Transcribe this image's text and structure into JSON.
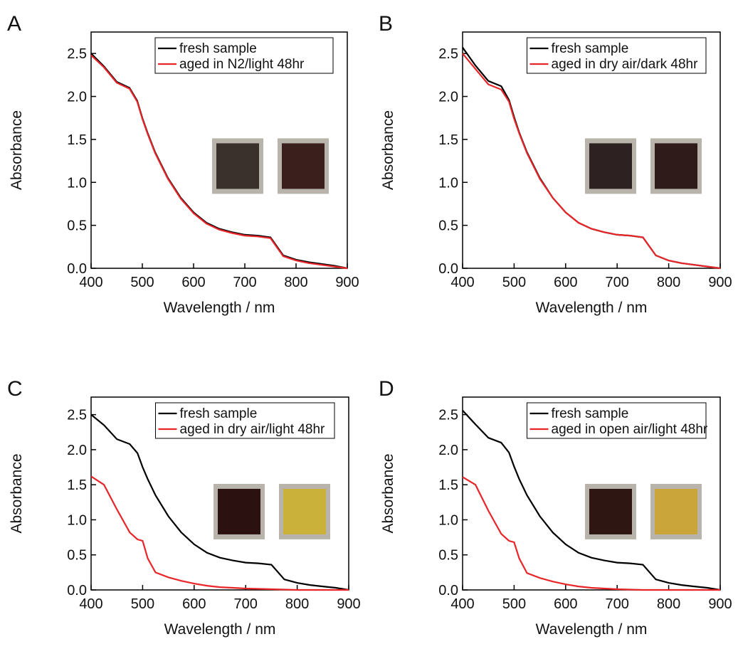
{
  "chart_data": [
    {
      "type": "line",
      "panel": "A",
      "xlabel": "Wavelength / nm",
      "ylabel": "Absorbance",
      "legend": "upper right",
      "x": [
        400,
        425,
        450,
        475,
        490,
        500,
        510,
        525,
        550,
        575,
        600,
        625,
        650,
        675,
        700,
        725,
        750,
        775,
        800,
        825,
        850,
        875,
        900
      ],
      "xlim": [
        400,
        900
      ],
      "xticks": [
        400,
        500,
        600,
        700,
        800,
        900
      ],
      "ylim": [
        0,
        2.75
      ],
      "yticks": [
        {
          "value": 0,
          "label": "0.0"
        },
        {
          "value": 0.5,
          "label": "0.5"
        },
        {
          "value": 1,
          "label": "1.0"
        },
        {
          "value": 1.5,
          "label": "1.5"
        },
        {
          "value": 2,
          "label": "2.0"
        },
        {
          "value": 2.5,
          "label": "2.5"
        }
      ],
      "series": [
        {
          "name": "fresh sample",
          "color": "#000000",
          "values": [
            2.5,
            2.35,
            2.17,
            2.1,
            1.95,
            1.75,
            1.58,
            1.35,
            1.05,
            0.82,
            0.65,
            0.53,
            0.46,
            0.42,
            0.39,
            0.38,
            0.36,
            0.15,
            0.1,
            0.07,
            0.05,
            0.03,
            0.0
          ]
        },
        {
          "name": "aged in N2/light 48hr",
          "color": "#e8262a",
          "values": [
            2.48,
            2.34,
            2.16,
            2.09,
            1.94,
            1.74,
            1.57,
            1.34,
            1.04,
            0.81,
            0.64,
            0.52,
            0.45,
            0.41,
            0.38,
            0.37,
            0.35,
            0.14,
            0.09,
            0.06,
            0.04,
            0.02,
            0.0
          ]
        }
      ]
    },
    {
      "type": "line",
      "panel": "B",
      "xlabel": "Wavelength / nm",
      "ylabel": "Absorbance",
      "legend": "upper right",
      "x": [
        400,
        425,
        450,
        475,
        490,
        500,
        510,
        525,
        550,
        575,
        600,
        625,
        650,
        675,
        700,
        725,
        750,
        775,
        800,
        825,
        850,
        875,
        900
      ],
      "xlim": [
        400,
        900
      ],
      "xticks": [
        400,
        500,
        600,
        700,
        800,
        900
      ],
      "ylim": [
        0,
        2.75
      ],
      "yticks": [
        {
          "value": 0,
          "label": "0.0"
        },
        {
          "value": 0.5,
          "label": "0.5"
        },
        {
          "value": 1,
          "label": "1.0"
        },
        {
          "value": 1.5,
          "label": "1.5"
        },
        {
          "value": 2,
          "label": "2.0"
        },
        {
          "value": 2.5,
          "label": "2.5"
        }
      ],
      "series": [
        {
          "name": "fresh sample",
          "color": "#000000",
          "values": [
            2.57,
            2.36,
            2.18,
            2.12,
            1.96,
            1.76,
            1.58,
            1.35,
            1.05,
            0.82,
            0.65,
            0.53,
            0.46,
            0.42,
            0.39,
            0.38,
            0.36,
            0.15,
            0.09,
            0.06,
            0.04,
            0.02,
            0.0
          ]
        },
        {
          "name": "aged in dry air/dark 48hr",
          "color": "#e8262a",
          "values": [
            2.5,
            2.32,
            2.14,
            2.08,
            1.94,
            1.74,
            1.57,
            1.34,
            1.04,
            0.82,
            0.65,
            0.53,
            0.46,
            0.42,
            0.39,
            0.38,
            0.36,
            0.15,
            0.09,
            0.06,
            0.04,
            0.02,
            0.0
          ]
        }
      ]
    },
    {
      "type": "line",
      "panel": "C",
      "xlabel": "Wavelength / nm",
      "ylabel": "Absorbance",
      "legend": "upper right",
      "x": [
        400,
        425,
        450,
        475,
        490,
        500,
        510,
        525,
        550,
        575,
        600,
        625,
        650,
        675,
        700,
        725,
        750,
        775,
        800,
        825,
        850,
        875,
        900
      ],
      "xlim": [
        400,
        900
      ],
      "xticks": [
        400,
        500,
        600,
        700,
        800,
        900
      ],
      "ylim": [
        0,
        2.75
      ],
      "yticks": [
        {
          "value": 0,
          "label": "0.0"
        },
        {
          "value": 0.5,
          "label": "0.5"
        },
        {
          "value": 1,
          "label": "1.0"
        },
        {
          "value": 1.5,
          "label": "1.5"
        },
        {
          "value": 2,
          "label": "2.0"
        },
        {
          "value": 2.5,
          "label": "2.5"
        }
      ],
      "series": [
        {
          "name": "fresh sample",
          "color": "#000000",
          "values": [
            2.5,
            2.35,
            2.15,
            2.08,
            1.95,
            1.75,
            1.58,
            1.35,
            1.05,
            0.82,
            0.65,
            0.53,
            0.46,
            0.42,
            0.39,
            0.38,
            0.36,
            0.15,
            0.1,
            0.07,
            0.05,
            0.03,
            0.0
          ]
        },
        {
          "name": "aged in dry air/light 48hr",
          "color": "#e8262a",
          "values": [
            1.62,
            1.5,
            1.15,
            0.82,
            0.72,
            0.7,
            0.45,
            0.25,
            0.18,
            0.13,
            0.09,
            0.06,
            0.04,
            0.03,
            0.02,
            0.015,
            0.01,
            0.005,
            0.0,
            0.0,
            0.0,
            0.0,
            0.0
          ]
        }
      ]
    },
    {
      "type": "line",
      "panel": "D",
      "xlabel": "Wavelength / nm",
      "ylabel": "Absorbance",
      "legend": "upper right",
      "x": [
        400,
        425,
        450,
        475,
        490,
        500,
        510,
        525,
        550,
        575,
        600,
        625,
        650,
        675,
        700,
        725,
        750,
        775,
        800,
        825,
        850,
        875,
        900
      ],
      "xlim": [
        400,
        900
      ],
      "xticks": [
        400,
        500,
        600,
        700,
        800,
        900
      ],
      "ylim": [
        0,
        2.75
      ],
      "yticks": [
        {
          "value": 0,
          "label": "0.0"
        },
        {
          "value": 0.5,
          "label": "0.5"
        },
        {
          "value": 1,
          "label": "1.0"
        },
        {
          "value": 1.5,
          "label": "1.5"
        },
        {
          "value": 2,
          "label": "2.0"
        },
        {
          "value": 2.5,
          "label": "2.5"
        }
      ],
      "series": [
        {
          "name": "fresh sample",
          "color": "#000000",
          "values": [
            2.56,
            2.36,
            2.17,
            2.1,
            1.96,
            1.76,
            1.58,
            1.35,
            1.05,
            0.82,
            0.65,
            0.53,
            0.46,
            0.42,
            0.39,
            0.38,
            0.36,
            0.15,
            0.1,
            0.07,
            0.05,
            0.03,
            0.0
          ]
        },
        {
          "name": "aged in open air/light 48hr",
          "color": "#e8262a",
          "values": [
            1.61,
            1.5,
            1.13,
            0.8,
            0.7,
            0.68,
            0.45,
            0.24,
            0.17,
            0.12,
            0.08,
            0.05,
            0.03,
            0.02,
            0.01,
            0.005,
            0.0,
            0.0,
            0.0,
            0.0,
            0.0,
            0.0,
            0.0
          ]
        }
      ]
    }
  ]
}
